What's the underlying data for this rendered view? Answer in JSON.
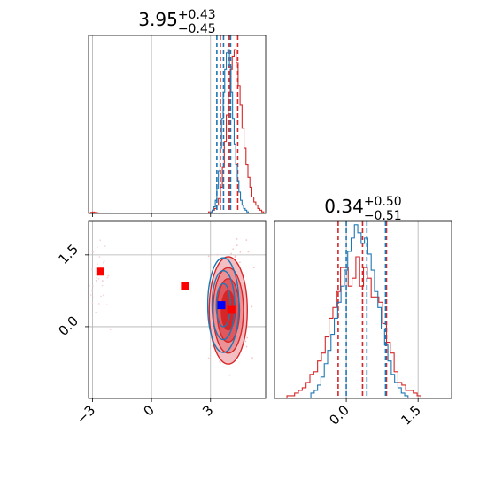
{
  "chart_data": {
    "type": "corner",
    "parameters": [
      {
        "title_main": "3.95",
        "title_sup": "+0.43",
        "title_sub": "−0.45",
        "range": [
          -3.2,
          5.8
        ],
        "ticks": [
          -3,
          0,
          3
        ],
        "tick_labels": [
          "−3",
          "0",
          "3"
        ]
      },
      {
        "title_main": "0.34",
        "title_sup": "+0.50",
        "title_sub": "−0.51",
        "range": [
          -1.5,
          2.2
        ],
        "ticks": [
          0.0,
          1.5
        ],
        "tick_labels": [
          "0.0",
          "1.5"
        ]
      }
    ],
    "series": [
      {
        "color": "#d62728",
        "hist1_quantiles": [
          3.5,
          3.95,
          4.38
        ],
        "hist2_quantiles": [
          -0.17,
          0.34,
          0.84
        ],
        "hist1": {
          "start": 2.9,
          "width": 0.1,
          "values": [
            1,
            1,
            2,
            3,
            5,
            9,
            16,
            28,
            44,
            60,
            74,
            88,
            96,
            100,
            92,
            78,
            66,
            52,
            40,
            30,
            22,
            16,
            10,
            7,
            5,
            3,
            2,
            1
          ]
        },
        "hist1_outliers": [
          {
            "x": -3.05,
            "v": 1.2
          },
          {
            "x": -2.95,
            "v": 1.6
          },
          {
            "x": -2.85,
            "v": 1.1
          },
          {
            "x": -2.75,
            "v": 0.8
          },
          {
            "x": -2.55,
            "v": 0.5
          }
        ],
        "hist2": {
          "start": -1.24,
          "width": 0.08,
          "values": [
            1,
            1,
            2,
            3,
            4,
            6,
            9,
            10,
            14,
            17,
            23,
            30,
            34,
            40,
            49,
            49,
            42,
            45,
            53,
            42,
            49,
            45,
            38,
            38,
            36,
            28,
            21,
            17,
            10,
            6,
            5,
            3,
            3,
            2,
            1
          ]
        },
        "contour_center": [
          3.9,
          0.34
        ],
        "contour_sigma": [
          0.44,
          0.51
        ],
        "markers": [
          {
            "x": -2.6,
            "y": 1.15
          },
          {
            "x": 1.7,
            "y": 0.85
          },
          {
            "x": 4.05,
            "y": 0.35
          }
        ]
      },
      {
        "color": "#1f77b4",
        "hist1_quantiles": [
          3.32,
          3.66,
          4.02
        ],
        "hist2_quantiles": [
          0.0,
          0.43,
          0.82
        ],
        "hist1": {
          "start": 3.0,
          "width": 0.08,
          "values": [
            1,
            2,
            4,
            8,
            15,
            26,
            40,
            58,
            74,
            88,
            98,
            100,
            90,
            74,
            58,
            42,
            30,
            20,
            13,
            8,
            5,
            3,
            2,
            1
          ]
        },
        "hist2": {
          "start": -0.74,
          "width": 0.07,
          "values": [
            2,
            3,
            5,
            8,
            13,
            18,
            24,
            30,
            36,
            42,
            48,
            55,
            60,
            65,
            62,
            58,
            60,
            54,
            48,
            40,
            34,
            26,
            20,
            14,
            9,
            6,
            4,
            2,
            1
          ]
        },
        "contour_center": [
          3.65,
          0.45
        ],
        "contour_sigma": [
          0.36,
          0.45
        ],
        "markers": [
          {
            "x": 3.55,
            "y": 0.45
          }
        ]
      }
    ],
    "grid": true
  }
}
